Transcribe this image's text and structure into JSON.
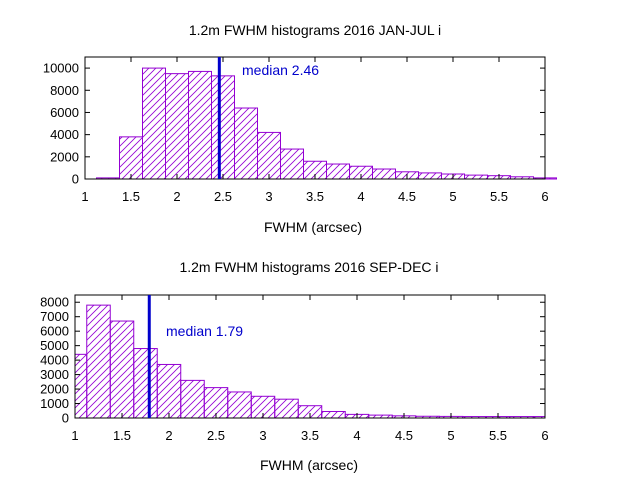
{
  "chart_data": [
    {
      "type": "bar",
      "title": "1.2m FWHM histograms 2016 JAN-JUL i",
      "xlabel": "FWHM (arcsec)",
      "ylabel": "",
      "xlim": [
        1,
        6
      ],
      "ylim": [
        0,
        11000
      ],
      "xticks": [
        "1",
        "1.5",
        "2",
        "2.5",
        "3",
        "3.5",
        "4",
        "4.5",
        "5",
        "5.5",
        "6"
      ],
      "yticks": [
        "0",
        "2000",
        "4000",
        "6000",
        "8000",
        "10000"
      ],
      "bin_width": 0.25,
      "bin_starts": [
        1.125,
        1.375,
        1.625,
        1.875,
        2.125,
        2.375,
        2.625,
        2.875,
        3.125,
        3.375,
        3.625,
        3.875,
        4.125,
        4.375,
        4.625,
        4.875,
        5.125,
        5.375,
        5.625,
        5.875
      ],
      "values": [
        100,
        3800,
        10000,
        9500,
        9700,
        9300,
        6400,
        4200,
        2700,
        1600,
        1350,
        1150,
        900,
        650,
        550,
        450,
        350,
        300,
        200,
        100
      ],
      "median": {
        "value": 2.46,
        "label": "median 2.46"
      },
      "bar_color": "#9400d3",
      "median_color": "#0000cc",
      "grid": false
    },
    {
      "type": "bar",
      "title": "1.2m FWHM histograms 2016 SEP-DEC i",
      "xlabel": "FWHM (arcsec)",
      "ylabel": "",
      "xlim": [
        1,
        6
      ],
      "ylim": [
        0,
        8500
      ],
      "xticks": [
        "1",
        "1.5",
        "2",
        "2.5",
        "3",
        "3.5",
        "4",
        "4.5",
        "5",
        "5.5",
        "6"
      ],
      "yticks": [
        "0",
        "1000",
        "2000",
        "3000",
        "4000",
        "5000",
        "6000",
        "7000",
        "8000"
      ],
      "bin_width": 0.25,
      "bin_starts": [
        1.0,
        1.125,
        1.375,
        1.625,
        1.875,
        2.125,
        2.375,
        2.625,
        2.875,
        3.125,
        3.375,
        3.625,
        3.875,
        4.125,
        4.375,
        4.625,
        4.875,
        5.125,
        5.375,
        5.625,
        5.875
      ],
      "bin_ends": [
        1.125,
        1.375,
        1.625,
        1.875,
        2.125,
        2.375,
        2.625,
        2.875,
        3.125,
        3.375,
        3.625,
        3.875,
        4.125,
        4.375,
        4.625,
        4.875,
        5.125,
        5.375,
        5.625,
        5.875,
        6.0
      ],
      "values": [
        4400,
        7800,
        6700,
        4800,
        3700,
        2600,
        2100,
        1800,
        1500,
        1300,
        850,
        450,
        250,
        200,
        150,
        120,
        110,
        100,
        100,
        100,
        100
      ],
      "median": {
        "value": 1.79,
        "label": "median 1.79"
      },
      "bar_color": "#9400d3",
      "median_color": "#0000cc",
      "grid": false
    }
  ]
}
